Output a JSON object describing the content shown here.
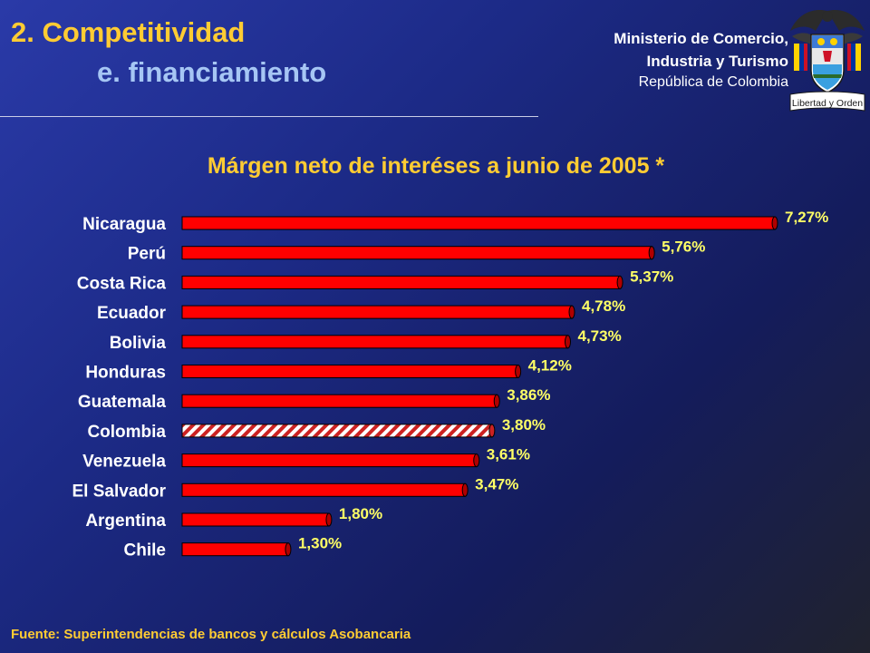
{
  "header": {
    "title_line1": "2. Competitividad",
    "title_line2": "e. financiamiento",
    "ministry_line1": "Ministerio de Comercio,",
    "ministry_line2": "Industria y Turismo",
    "ministry_line3": "República de Colombia",
    "motto": "Libertad y Orden"
  },
  "source": "Fuente: Superintendencias de bancos y cálculos Asobancaria",
  "colors": {
    "bar": "#ff0000",
    "highlight_bar": "#ffffff",
    "highlight_stripe": "#cc2222",
    "title": "#ffcc33",
    "subtitle": "#a6c6f4",
    "background": "#1c2a86"
  },
  "chart_data": {
    "type": "bar",
    "orientation": "horizontal",
    "title": "Márgen neto de interéses a junio de 2005 *",
    "categories": [
      "Nicaragua",
      "Perú",
      "Costa Rica",
      "Ecuador",
      "Bolivia",
      "Honduras",
      "Guatemala",
      "Colombia",
      "Venezuela",
      "El Salvador",
      "Argentina",
      "Chile"
    ],
    "values": [
      7.27,
      5.76,
      5.37,
      4.78,
      4.73,
      4.12,
      3.86,
      3.8,
      3.61,
      3.47,
      1.8,
      1.3
    ],
    "labels": [
      "7,27%",
      "5,76%",
      "5,37%",
      "4,78%",
      "4,73%",
      "4,12%",
      "3,86%",
      "3,80%",
      "3,61%",
      "3,47%",
      "1,80%",
      "1,30%"
    ],
    "highlight": "Colombia",
    "xlim": [
      0,
      7.27
    ],
    "grid": false,
    "legend": false
  }
}
